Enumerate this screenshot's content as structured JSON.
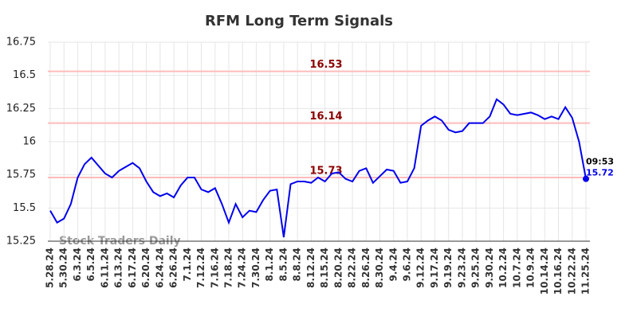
{
  "chart_data": {
    "type": "line",
    "title": "RFM Long Term Signals",
    "watermark": "Stock Traders Daily",
    "categories": [
      "5.28.24",
      null,
      "5.30.24",
      null,
      "6.3.24",
      null,
      "6.5.24",
      null,
      "6.11.24",
      null,
      "6.13.24",
      null,
      "6.17.24",
      null,
      "6.20.24",
      null,
      "6.24.24",
      null,
      "6.26.24",
      null,
      "7.1.24",
      null,
      "7.12.24",
      null,
      "7.16.24",
      null,
      "7.18.24",
      null,
      "7.24.24",
      null,
      "7.30.24",
      null,
      "8.1.24",
      null,
      "8.5.24",
      null,
      "8.8.24",
      null,
      "8.12.24",
      null,
      "8.15.24",
      null,
      "8.20.24",
      null,
      "8.22.24",
      null,
      "8.26.24",
      null,
      "8.30.24",
      null,
      "9.4.24",
      null,
      "9.6.24",
      null,
      "9.12.24",
      null,
      "9.17.24",
      null,
      "9.19.24",
      null,
      "9.23.24",
      null,
      "9.25.24",
      null,
      "9.30.24",
      null,
      "10.2.24",
      null,
      "10.7.24",
      null,
      "10.9.24",
      null,
      "10.14.24",
      null,
      "10.16.24",
      null,
      "10.22.24",
      null,
      "11.25.24"
    ],
    "series": [
      {
        "name": "RFM",
        "color": "#0000ee",
        "values": [
          15.48,
          15.39,
          15.42,
          15.53,
          15.73,
          15.83,
          15.88,
          15.82,
          15.76,
          15.73,
          15.78,
          15.81,
          15.84,
          15.8,
          15.7,
          15.62,
          15.59,
          15.61,
          15.58,
          15.67,
          15.73,
          15.73,
          15.64,
          15.62,
          15.65,
          15.53,
          15.39,
          15.53,
          15.43,
          15.48,
          15.47,
          15.56,
          15.63,
          15.64,
          15.28,
          15.68,
          15.7,
          15.7,
          15.69,
          15.73,
          15.7,
          15.76,
          15.77,
          15.72,
          15.7,
          15.78,
          15.8,
          15.69,
          15.74,
          15.79,
          15.78,
          15.69,
          15.7,
          15.8,
          16.12,
          16.16,
          16.19,
          16.16,
          16.09,
          16.07,
          16.08,
          16.14,
          16.14,
          16.14,
          16.19,
          16.32,
          16.28,
          16.21,
          16.2,
          16.21,
          16.22,
          16.2,
          16.17,
          16.19,
          16.17,
          16.26,
          16.18,
          16.0,
          15.72
        ]
      }
    ],
    "hlines": [
      16.53,
      16.14,
      15.73
    ],
    "hline_color": "#ffbbbb",
    "hline_label_color": "#8b0000",
    "last_time": "09:53",
    "ylim": [
      15.25,
      16.75
    ],
    "yticks": [
      15.25,
      15.5,
      15.75,
      16,
      16.25,
      16.5,
      16.75
    ],
    "grid": true
  }
}
